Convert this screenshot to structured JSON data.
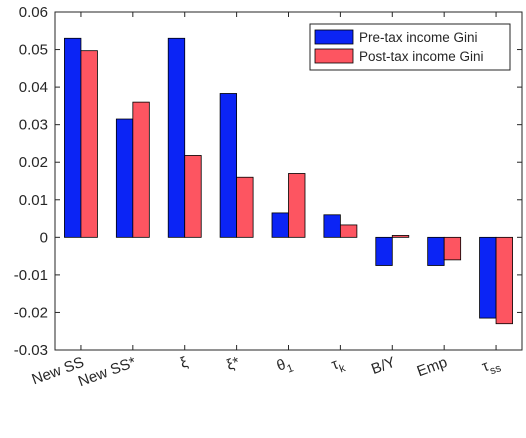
{
  "chart_data": {
    "type": "bar",
    "categories": [
      "New SS",
      "New SS*",
      "ξ",
      "ξ*",
      "θ",
      "τ",
      "B/Y",
      "Emp",
      "τ"
    ],
    "category_subscripts": [
      "",
      "",
      "",
      "",
      "1",
      "k",
      "",
      "",
      "ss"
    ],
    "series": [
      {
        "name": "Pre-tax income Gini",
        "color": "#0b24f5",
        "values": [
          0.053,
          0.0315,
          0.053,
          0.0383,
          0.0065,
          0.006,
          -0.0075,
          -0.0075,
          -0.0215
        ]
      },
      {
        "name": "Post-tax income Gini",
        "color": "#fd5561",
        "values": [
          0.0497,
          0.036,
          0.0218,
          0.016,
          0.017,
          0.0033,
          0.0005,
          -0.006,
          -0.023
        ]
      }
    ],
    "ylim": [
      -0.03,
      0.06
    ],
    "yticks": [
      "-0.03",
      "-0.02",
      "-0.01",
      "0",
      "0.01",
      "0.02",
      "0.03",
      "0.04",
      "0.05",
      "0.06"
    ],
    "ytick_values": [
      -0.03,
      -0.02,
      -0.01,
      0,
      0.01,
      0.02,
      0.03,
      0.04,
      0.05,
      0.06
    ],
    "legend_position": "top-right",
    "grid": false,
    "title": "",
    "xlabel": "",
    "ylabel": ""
  }
}
